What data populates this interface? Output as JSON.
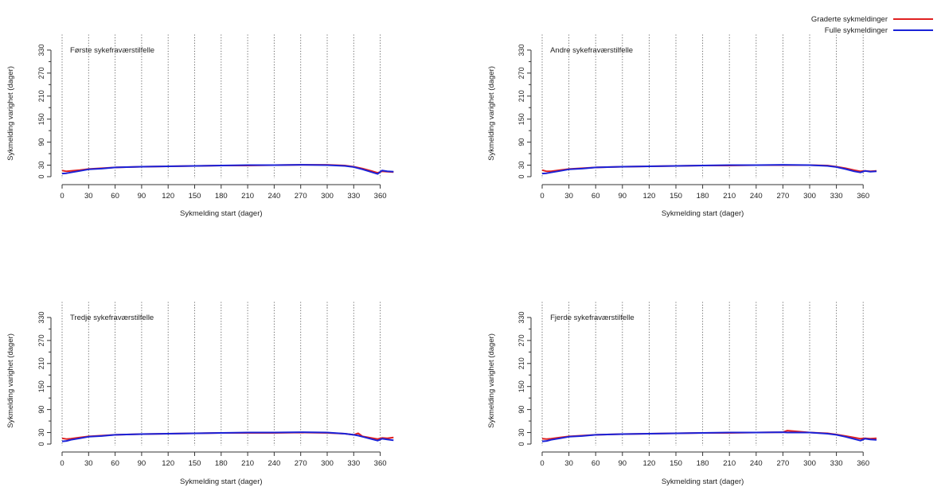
{
  "colors": {
    "graded": "#e02020",
    "full": "#1a22d8",
    "axis": "#333333",
    "grid": "#555555"
  },
  "legend": {
    "placement": "top-right of second panel",
    "items": [
      {
        "label": "Graderte sykmeldinger",
        "color": "#e02020"
      },
      {
        "label": "Fulle sykmeldinger",
        "color": "#1a22d8"
      }
    ]
  },
  "chart_data": [
    {
      "type": "line",
      "title": "Første sykefraværstilfelle",
      "xlabel": "Sykmelding start (dager)",
      "ylabel": "Sykmelding varighet (dager)",
      "xlim": [
        0,
        375
      ],
      "ylim": [
        0,
        360
      ],
      "xticks": [
        "0",
        "30",
        "60",
        "90",
        "120",
        "150",
        "180",
        "210",
        "240",
        "270",
        "300",
        "330",
        "360"
      ],
      "yticks": [
        "0",
        "30",
        "90",
        "150",
        "210",
        "270",
        "330"
      ],
      "vgrid": [
        0,
        30,
        60,
        90,
        120,
        150,
        180,
        210,
        240,
        270,
        300,
        330,
        360
      ],
      "series": [
        {
          "name": "Graderte sykmeldinger",
          "x": [
            0,
            5,
            10,
            20,
            30,
            45,
            60,
            90,
            120,
            150,
            180,
            210,
            240,
            270,
            300,
            320,
            330,
            340,
            350,
            357,
            362,
            368,
            375
          ],
          "y": [
            16,
            14,
            15,
            17,
            20,
            22,
            24,
            26,
            27,
            28,
            29,
            29,
            30,
            31,
            31,
            29,
            26,
            21,
            15,
            10,
            14,
            13,
            12
          ]
        },
        {
          "name": "Fulle sykmeldinger",
          "x": [
            0,
            5,
            10,
            20,
            30,
            45,
            60,
            90,
            120,
            150,
            180,
            210,
            240,
            270,
            300,
            320,
            330,
            340,
            350,
            357,
            362,
            368,
            375
          ],
          "y": [
            8,
            9,
            11,
            15,
            19,
            21,
            24,
            26,
            27,
            28,
            29,
            30,
            30,
            31,
            30,
            28,
            25,
            19,
            12,
            7,
            16,
            14,
            13
          ]
        }
      ]
    },
    {
      "type": "line",
      "title": "Andre sykefraværstilfelle",
      "xlabel": "Sykmelding start (dager)",
      "ylabel": "Sykmelding varighet (dager)",
      "xlim": [
        0,
        375
      ],
      "ylim": [
        0,
        360
      ],
      "xticks": [
        "0",
        "30",
        "60",
        "90",
        "120",
        "150",
        "180",
        "210",
        "240",
        "270",
        "300",
        "330",
        "360"
      ],
      "yticks": [
        "0",
        "30",
        "90",
        "150",
        "210",
        "270",
        "330"
      ],
      "vgrid": [
        0,
        30,
        60,
        90,
        120,
        150,
        180,
        210,
        240,
        270,
        300,
        330,
        360
      ],
      "series": [
        {
          "name": "Graderte sykmeldinger",
          "x": [
            0,
            5,
            10,
            20,
            30,
            45,
            60,
            90,
            120,
            150,
            180,
            210,
            240,
            270,
            300,
            320,
            330,
            340,
            350,
            357,
            362,
            368,
            375
          ],
          "y": [
            17,
            14,
            14,
            17,
            20,
            22,
            24,
            26,
            27,
            28,
            29,
            29,
            30,
            30,
            30,
            29,
            26,
            22,
            17,
            14,
            15,
            14,
            15
          ]
        },
        {
          "name": "Fulle sykmeldinger",
          "x": [
            0,
            5,
            10,
            20,
            30,
            45,
            60,
            90,
            120,
            150,
            180,
            210,
            240,
            270,
            300,
            320,
            330,
            340,
            350,
            357,
            362,
            368,
            375
          ],
          "y": [
            8,
            9,
            11,
            15,
            19,
            21,
            24,
            26,
            27,
            28,
            29,
            30,
            30,
            31,
            30,
            28,
            25,
            20,
            14,
            11,
            15,
            13,
            14
          ]
        }
      ]
    },
    {
      "type": "line",
      "title": "Tredje sykefraværstilfelle",
      "xlabel": "Sykmelding start (dager)",
      "ylabel": "Sykmelding varighet (dager)",
      "xlim": [
        0,
        375
      ],
      "ylim": [
        0,
        360
      ],
      "xticks": [
        "0",
        "30",
        "60",
        "90",
        "120",
        "150",
        "180",
        "210",
        "240",
        "270",
        "300",
        "330",
        "360"
      ],
      "yticks": [
        "0",
        "30",
        "90",
        "150",
        "210",
        "270",
        "330"
      ],
      "vgrid": [
        0,
        30,
        60,
        90,
        120,
        150,
        180,
        210,
        240,
        270,
        300,
        330,
        360
      ],
      "series": [
        {
          "name": "Graderte sykmeldinger",
          "x": [
            0,
            5,
            10,
            20,
            30,
            45,
            60,
            90,
            120,
            150,
            180,
            210,
            240,
            270,
            300,
            320,
            330,
            335,
            340,
            350,
            357,
            362,
            368,
            375
          ],
          "y": [
            15,
            13,
            14,
            17,
            20,
            22,
            24,
            26,
            27,
            28,
            29,
            29,
            29,
            30,
            29,
            27,
            24,
            28,
            20,
            16,
            13,
            16,
            15,
            17
          ]
        },
        {
          "name": "Fulle sykmeldinger",
          "x": [
            0,
            5,
            10,
            20,
            30,
            45,
            60,
            90,
            120,
            150,
            180,
            210,
            240,
            270,
            300,
            320,
            330,
            335,
            340,
            350,
            357,
            362,
            368,
            375
          ],
          "y": [
            7,
            8,
            11,
            15,
            19,
            21,
            24,
            26,
            27,
            28,
            29,
            30,
            30,
            31,
            30,
            27,
            24,
            22,
            19,
            13,
            9,
            14,
            12,
            10
          ]
        }
      ]
    },
    {
      "type": "line",
      "title": "Fjerde sykefraværstilfelle",
      "xlabel": "Sykmelding start (dager)",
      "ylabel": "Sykmelding varighet (dager)",
      "xlim": [
        0,
        375
      ],
      "ylim": [
        0,
        360
      ],
      "xticks": [
        "0",
        "30",
        "60",
        "90",
        "120",
        "150",
        "180",
        "210",
        "240",
        "270",
        "300",
        "330",
        "360"
      ],
      "yticks": [
        "0",
        "30",
        "90",
        "150",
        "210",
        "270",
        "330"
      ],
      "vgrid": [
        0,
        30,
        60,
        90,
        120,
        150,
        180,
        210,
        240,
        270,
        300,
        330,
        360
      ],
      "series": [
        {
          "name": "Graderte sykmeldinger",
          "x": [
            0,
            5,
            10,
            20,
            30,
            45,
            60,
            90,
            120,
            150,
            180,
            210,
            240,
            270,
            275,
            300,
            320,
            330,
            340,
            350,
            357,
            362,
            368,
            375
          ],
          "y": [
            14,
            13,
            14,
            17,
            20,
            22,
            24,
            26,
            27,
            28,
            29,
            29,
            30,
            31,
            35,
            30,
            28,
            25,
            21,
            17,
            14,
            15,
            14,
            15
          ]
        },
        {
          "name": "Fulle sykmeldinger",
          "x": [
            0,
            5,
            10,
            20,
            30,
            45,
            60,
            90,
            120,
            150,
            180,
            210,
            240,
            270,
            275,
            300,
            320,
            330,
            340,
            350,
            357,
            362,
            368,
            375
          ],
          "y": [
            7,
            8,
            11,
            15,
            19,
            21,
            24,
            26,
            27,
            28,
            29,
            30,
            30,
            31,
            30,
            30,
            27,
            24,
            19,
            13,
            9,
            14,
            12,
            11
          ]
        }
      ]
    }
  ]
}
